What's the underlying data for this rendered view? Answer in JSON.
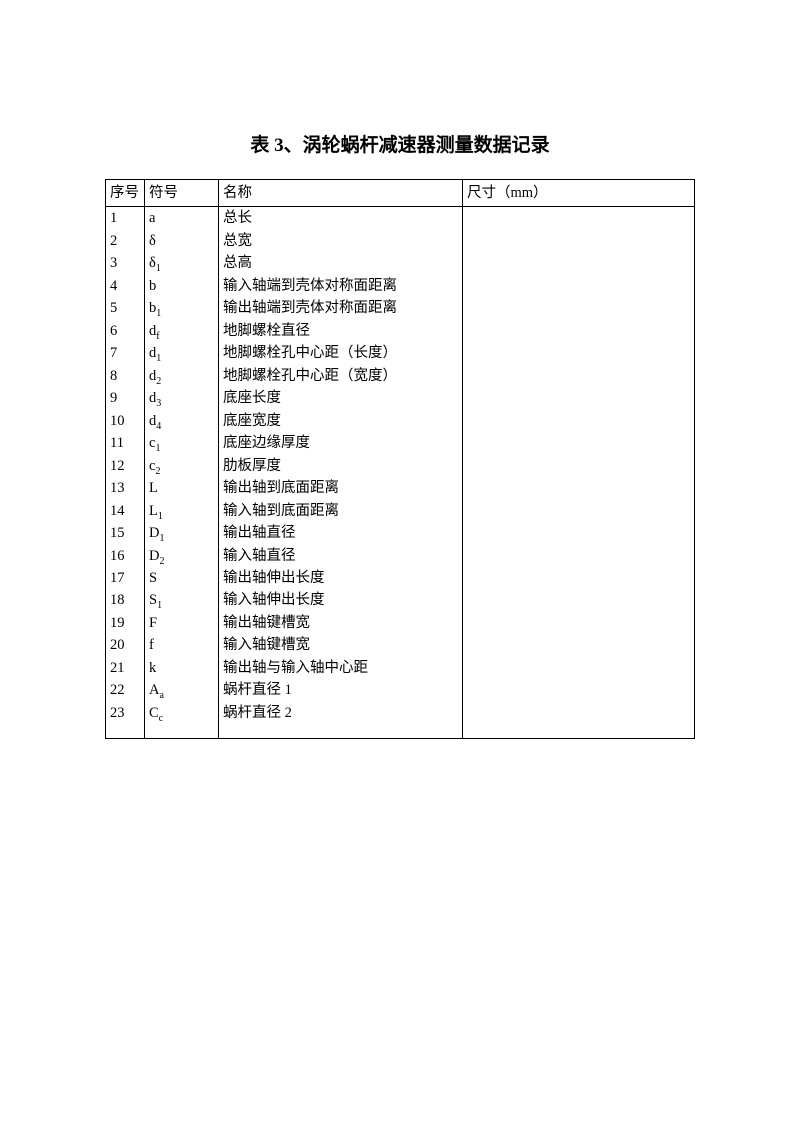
{
  "title": "表 3、涡轮蜗杆减速器测量数据记录",
  "columns": [
    "序号",
    "符号",
    "名称",
    "尺寸（mm）"
  ],
  "rows": [
    {
      "seq": "1",
      "sym": "a",
      "name": "总长",
      "dim": ""
    },
    {
      "seq": "2",
      "sym": "δ",
      "name": "总宽",
      "dim": ""
    },
    {
      "seq": "3",
      "sym": "δ<sub>1</sub>",
      "name": "总高",
      "dim": ""
    },
    {
      "seq": "4",
      "sym": "b",
      "name": "输入轴端到壳体对称面距离",
      "dim": ""
    },
    {
      "seq": "5",
      "sym": "b<sub>1</sub>",
      "name": "输出轴端到壳体对称面距离",
      "dim": ""
    },
    {
      "seq": "6",
      "sym": "d<sub>f</sub>",
      "name": "地脚螺栓直径",
      "dim": ""
    },
    {
      "seq": "7",
      "sym": "d<sub>1</sub>",
      "name": "地脚螺栓孔中心距（长度）",
      "dim": ""
    },
    {
      "seq": "8",
      "sym": "d<sub>2</sub>",
      "name": "地脚螺栓孔中心距（宽度）",
      "dim": ""
    },
    {
      "seq": "9",
      "sym": "d<sub>3</sub>",
      "name": "底座长度",
      "dim": ""
    },
    {
      "seq": "10",
      "sym": "d<sub>4</sub>",
      "name": "底座宽度",
      "dim": ""
    },
    {
      "seq": "11",
      "sym": "c<sub>1</sub>",
      "name": "底座边缘厚度",
      "dim": ""
    },
    {
      "seq": "12",
      "sym": "c<sub>2</sub>",
      "name": "肋板厚度",
      "dim": ""
    },
    {
      "seq": "13",
      "sym": "L",
      "name": "输出轴到底面距离",
      "dim": ""
    },
    {
      "seq": "14",
      "sym": "L<sub>1</sub>",
      "name": "输入轴到底面距离",
      "dim": ""
    },
    {
      "seq": "15",
      "sym": "D<sub>1</sub>",
      "name": "输出轴直径",
      "dim": ""
    },
    {
      "seq": "16",
      "sym": "D<sub>2</sub>",
      "name": "输入轴直径",
      "dim": ""
    },
    {
      "seq": "17",
      "sym": "S",
      "name": "输出轴伸出长度",
      "dim": ""
    },
    {
      "seq": "18",
      "sym": "S<sub>1</sub>",
      "name": "输入轴伸出长度",
      "dim": ""
    },
    {
      "seq": "19",
      "sym": "F",
      "name": "输出轴键槽宽",
      "dim": ""
    },
    {
      "seq": "20",
      "sym": "f",
      "name": "输入轴键槽宽",
      "dim": ""
    },
    {
      "seq": "21",
      "sym": "k",
      "name": "输出轴与输入轴中心距",
      "dim": ""
    },
    {
      "seq": "22",
      "sym": "A<sub>a</sub>",
      "name": "蜗杆直径 1",
      "dim": ""
    },
    {
      "seq": "23",
      "sym": "C<sub>c</sub>",
      "name": "蜗杆直径 2",
      "dim": ""
    }
  ]
}
